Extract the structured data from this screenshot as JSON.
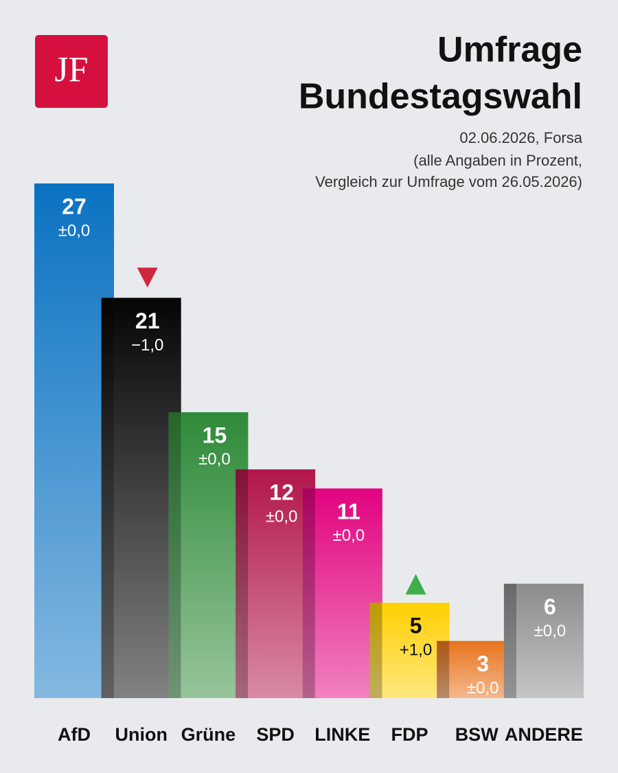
{
  "logo": "JF",
  "chart_data": {
    "type": "bar",
    "title": [
      "Umfrage",
      "Bundestagswahl"
    ],
    "subtitle": [
      "02.06.2026, Forsa",
      "(alle Angaben in Prozent,",
      "Vergleich zur Umfrage vom 26.05.2026)"
    ],
    "categories": [
      "AfD",
      "Union",
      "Grüne",
      "SPD",
      "LINKE",
      "FDP",
      "BSW",
      "ANDERE"
    ],
    "values": [
      27,
      21,
      15,
      12,
      11,
      5,
      3,
      6
    ],
    "colors": [
      "#0a72c2",
      "#050505",
      "#2e8a38",
      "#b2164a",
      "#e2037f",
      "#ffcf00",
      "#e8731c",
      "#8c8c8c"
    ],
    "changes": [
      0,
      -1,
      0,
      0,
      0,
      1,
      0,
      0
    ],
    "change_labels": [
      "±0,0",
      "−1,0",
      "±0,0",
      "±0,0",
      "±0,0",
      "+1,0",
      "±0,0",
      "±0,0"
    ],
    "up_color": "#3fae49",
    "down_color": "#d0263f"
  }
}
